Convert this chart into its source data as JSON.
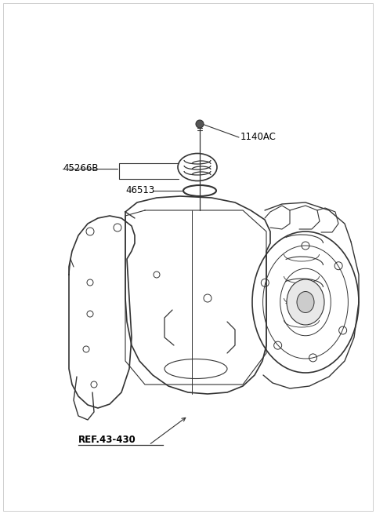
{
  "bg_color": "#ffffff",
  "line_color": "#333333",
  "label_color": "#000000",
  "lw": 1.0,
  "fig_w": 4.8,
  "fig_h": 6.55,
  "dpi": 100,
  "parts": {
    "bolt_label": "1140AC",
    "gear_label": "45266B",
    "oring_label": "46513",
    "ref_label": "REF.43-430"
  }
}
